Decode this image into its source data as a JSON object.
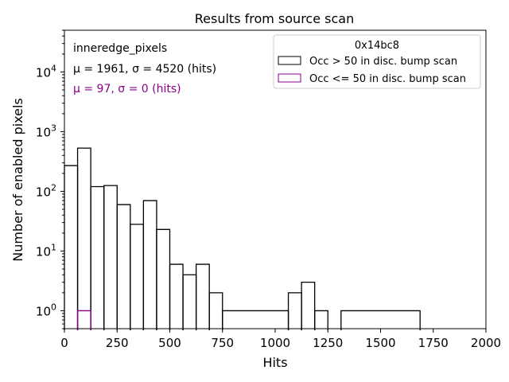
{
  "chart_data": {
    "type": "histogram",
    "title": "Results from source scan",
    "xlabel": "Hits",
    "ylabel": "Number of enabled pixels",
    "xlim": [
      0,
      2000
    ],
    "ylim": [
      0.5,
      50000
    ],
    "yscale": "log",
    "grid": false,
    "x_ticks": [
      0,
      250,
      500,
      750,
      1000,
      1250,
      1500,
      1750,
      2000
    ],
    "y_tick_labels": [
      {
        "base": "10",
        "exp": "0",
        "value": 1
      },
      {
        "base": "10",
        "exp": "1",
        "value": 10
      },
      {
        "base": "10",
        "exp": "2",
        "value": 100
      },
      {
        "base": "10",
        "exp": "3",
        "value": 1000
      },
      {
        "base": "10",
        "exp": "4",
        "value": 10000
      }
    ],
    "bin_width": 62.5,
    "annotations": [
      {
        "text": "inneredge_pixels",
        "color": "#000000"
      },
      {
        "text": "μ = 1961, σ = 4520 (hits)",
        "color": "#000000"
      },
      {
        "text": "μ = 97, σ = 0 (hits)",
        "color": "#8b008b"
      }
    ],
    "legend": {
      "title": "0x14bc8",
      "position": "top-right"
    },
    "series": [
      {
        "name": "Occ > 50 in disc. bump scan",
        "color": "#000000",
        "bins": [
          {
            "x0": 0,
            "x1": 62.5,
            "count": 270
          },
          {
            "x0": 62.5,
            "x1": 125,
            "count": 530
          },
          {
            "x0": 125,
            "x1": 187.5,
            "count": 120
          },
          {
            "x0": 187.5,
            "x1": 250,
            "count": 125
          },
          {
            "x0": 250,
            "x1": 312.5,
            "count": 60
          },
          {
            "x0": 312.5,
            "x1": 375,
            "count": 28
          },
          {
            "x0": 375,
            "x1": 437.5,
            "count": 70
          },
          {
            "x0": 437.5,
            "x1": 500,
            "count": 23
          },
          {
            "x0": 500,
            "x1": 562.5,
            "count": 6
          },
          {
            "x0": 562.5,
            "x1": 625,
            "count": 4
          },
          {
            "x0": 625,
            "x1": 687.5,
            "count": 6
          },
          {
            "x0": 687.5,
            "x1": 750,
            "count": 2
          },
          {
            "x0": 750,
            "x1": 1062.5,
            "count": 1
          },
          {
            "x0": 1062.5,
            "x1": 1125,
            "count": 2
          },
          {
            "x0": 1125,
            "x1": 1187.5,
            "count": 3
          },
          {
            "x0": 1187.5,
            "x1": 1250,
            "count": 1
          },
          {
            "x0": 1312.5,
            "x1": 1687.5,
            "count": 1
          }
        ]
      },
      {
        "name": "Occ <= 50 in disc. bump scan",
        "color": "#8b008b",
        "bins": [
          {
            "x0": 62.5,
            "x1": 125,
            "count": 1
          }
        ]
      }
    ]
  }
}
